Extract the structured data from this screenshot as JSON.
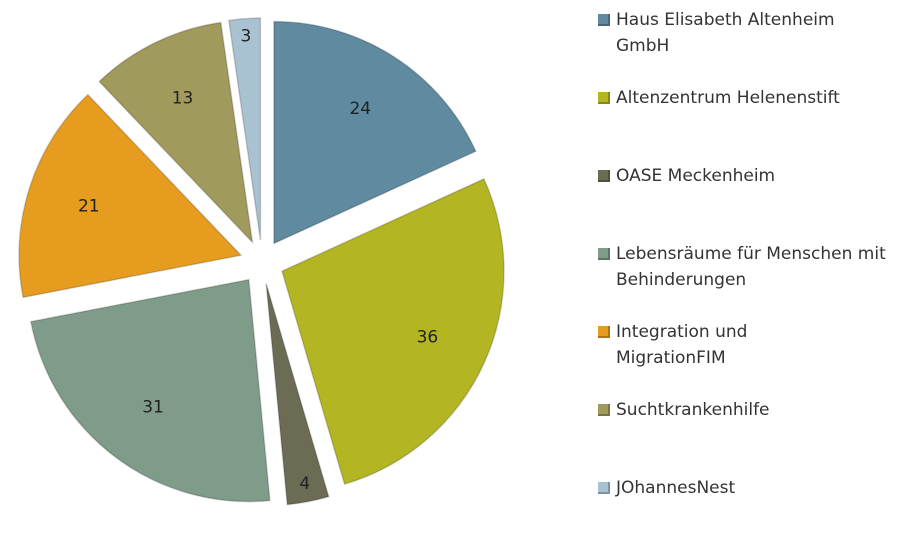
{
  "chart_data": {
    "type": "pie",
    "categories": [
      "Haus Elisabeth Altenheim GmbH",
      "Altenzentrum Helenenstift",
      "OASE Meckenheim",
      "Lebensräume für Menschen mit Behinderungen",
      "Integration und MigrationFIM",
      "Suchtkrankenhilfe",
      "JOhannesNest"
    ],
    "values": [
      24,
      36,
      4,
      31,
      21,
      13,
      3
    ],
    "colors": [
      "#5f8aa0",
      "#b3b523",
      "#6c6c55",
      "#7e9c89",
      "#e69c1e",
      "#a09a5c",
      "#a9c2d2"
    ],
    "legend": "right"
  }
}
